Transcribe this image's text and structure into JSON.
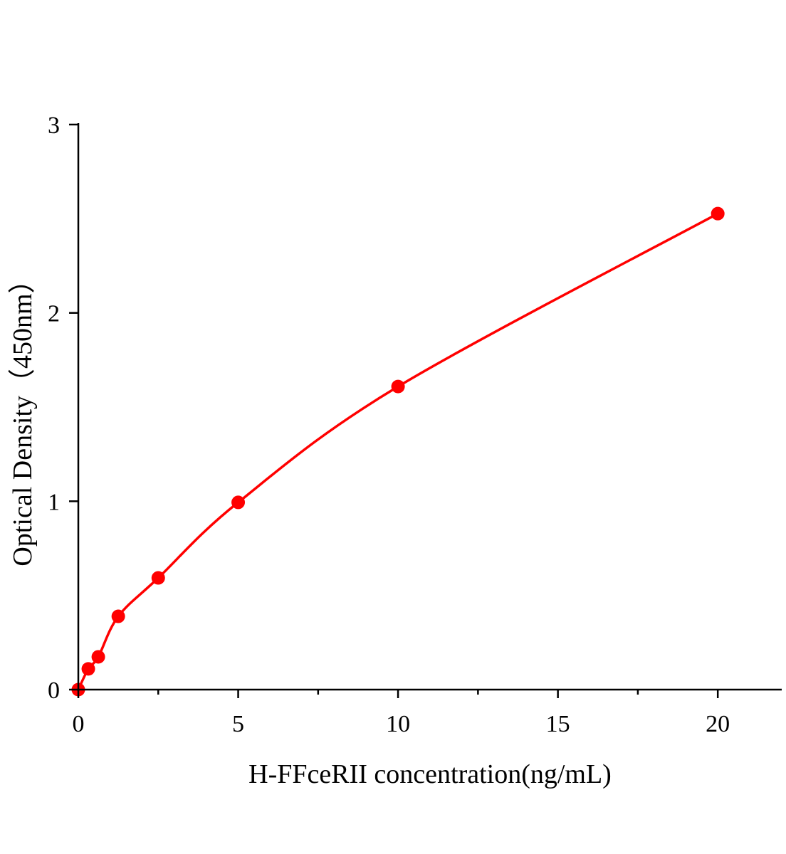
{
  "chart_data": {
    "type": "scatter",
    "title": "",
    "xlabel": "H-FFceRII concentration(ng/mL)",
    "ylabel": "Optical Density（450nm）",
    "xlim": [
      0,
      22
    ],
    "ylim": [
      0,
      3
    ],
    "xticks": [
      0,
      5,
      10,
      15,
      20
    ],
    "xtick_labels": [
      "0",
      "5",
      "10",
      "15",
      "20"
    ],
    "xminor_ticks": [
      2.5,
      7.5,
      12.5,
      17.5
    ],
    "yticks": [
      0,
      1,
      2,
      3
    ],
    "ytick_labels": [
      "0",
      "1",
      "2",
      "3"
    ],
    "grid": false,
    "legend": "none",
    "color": "#ff0000",
    "series": [
      {
        "x": [
          0,
          0.3125,
          0.625,
          1.25,
          2.5,
          5,
          10,
          20
        ],
        "y": [
          0.0,
          0.11,
          0.174,
          0.389,
          0.593,
          0.994,
          1.609,
          2.527
        ],
        "fit_line": true
      }
    ]
  }
}
